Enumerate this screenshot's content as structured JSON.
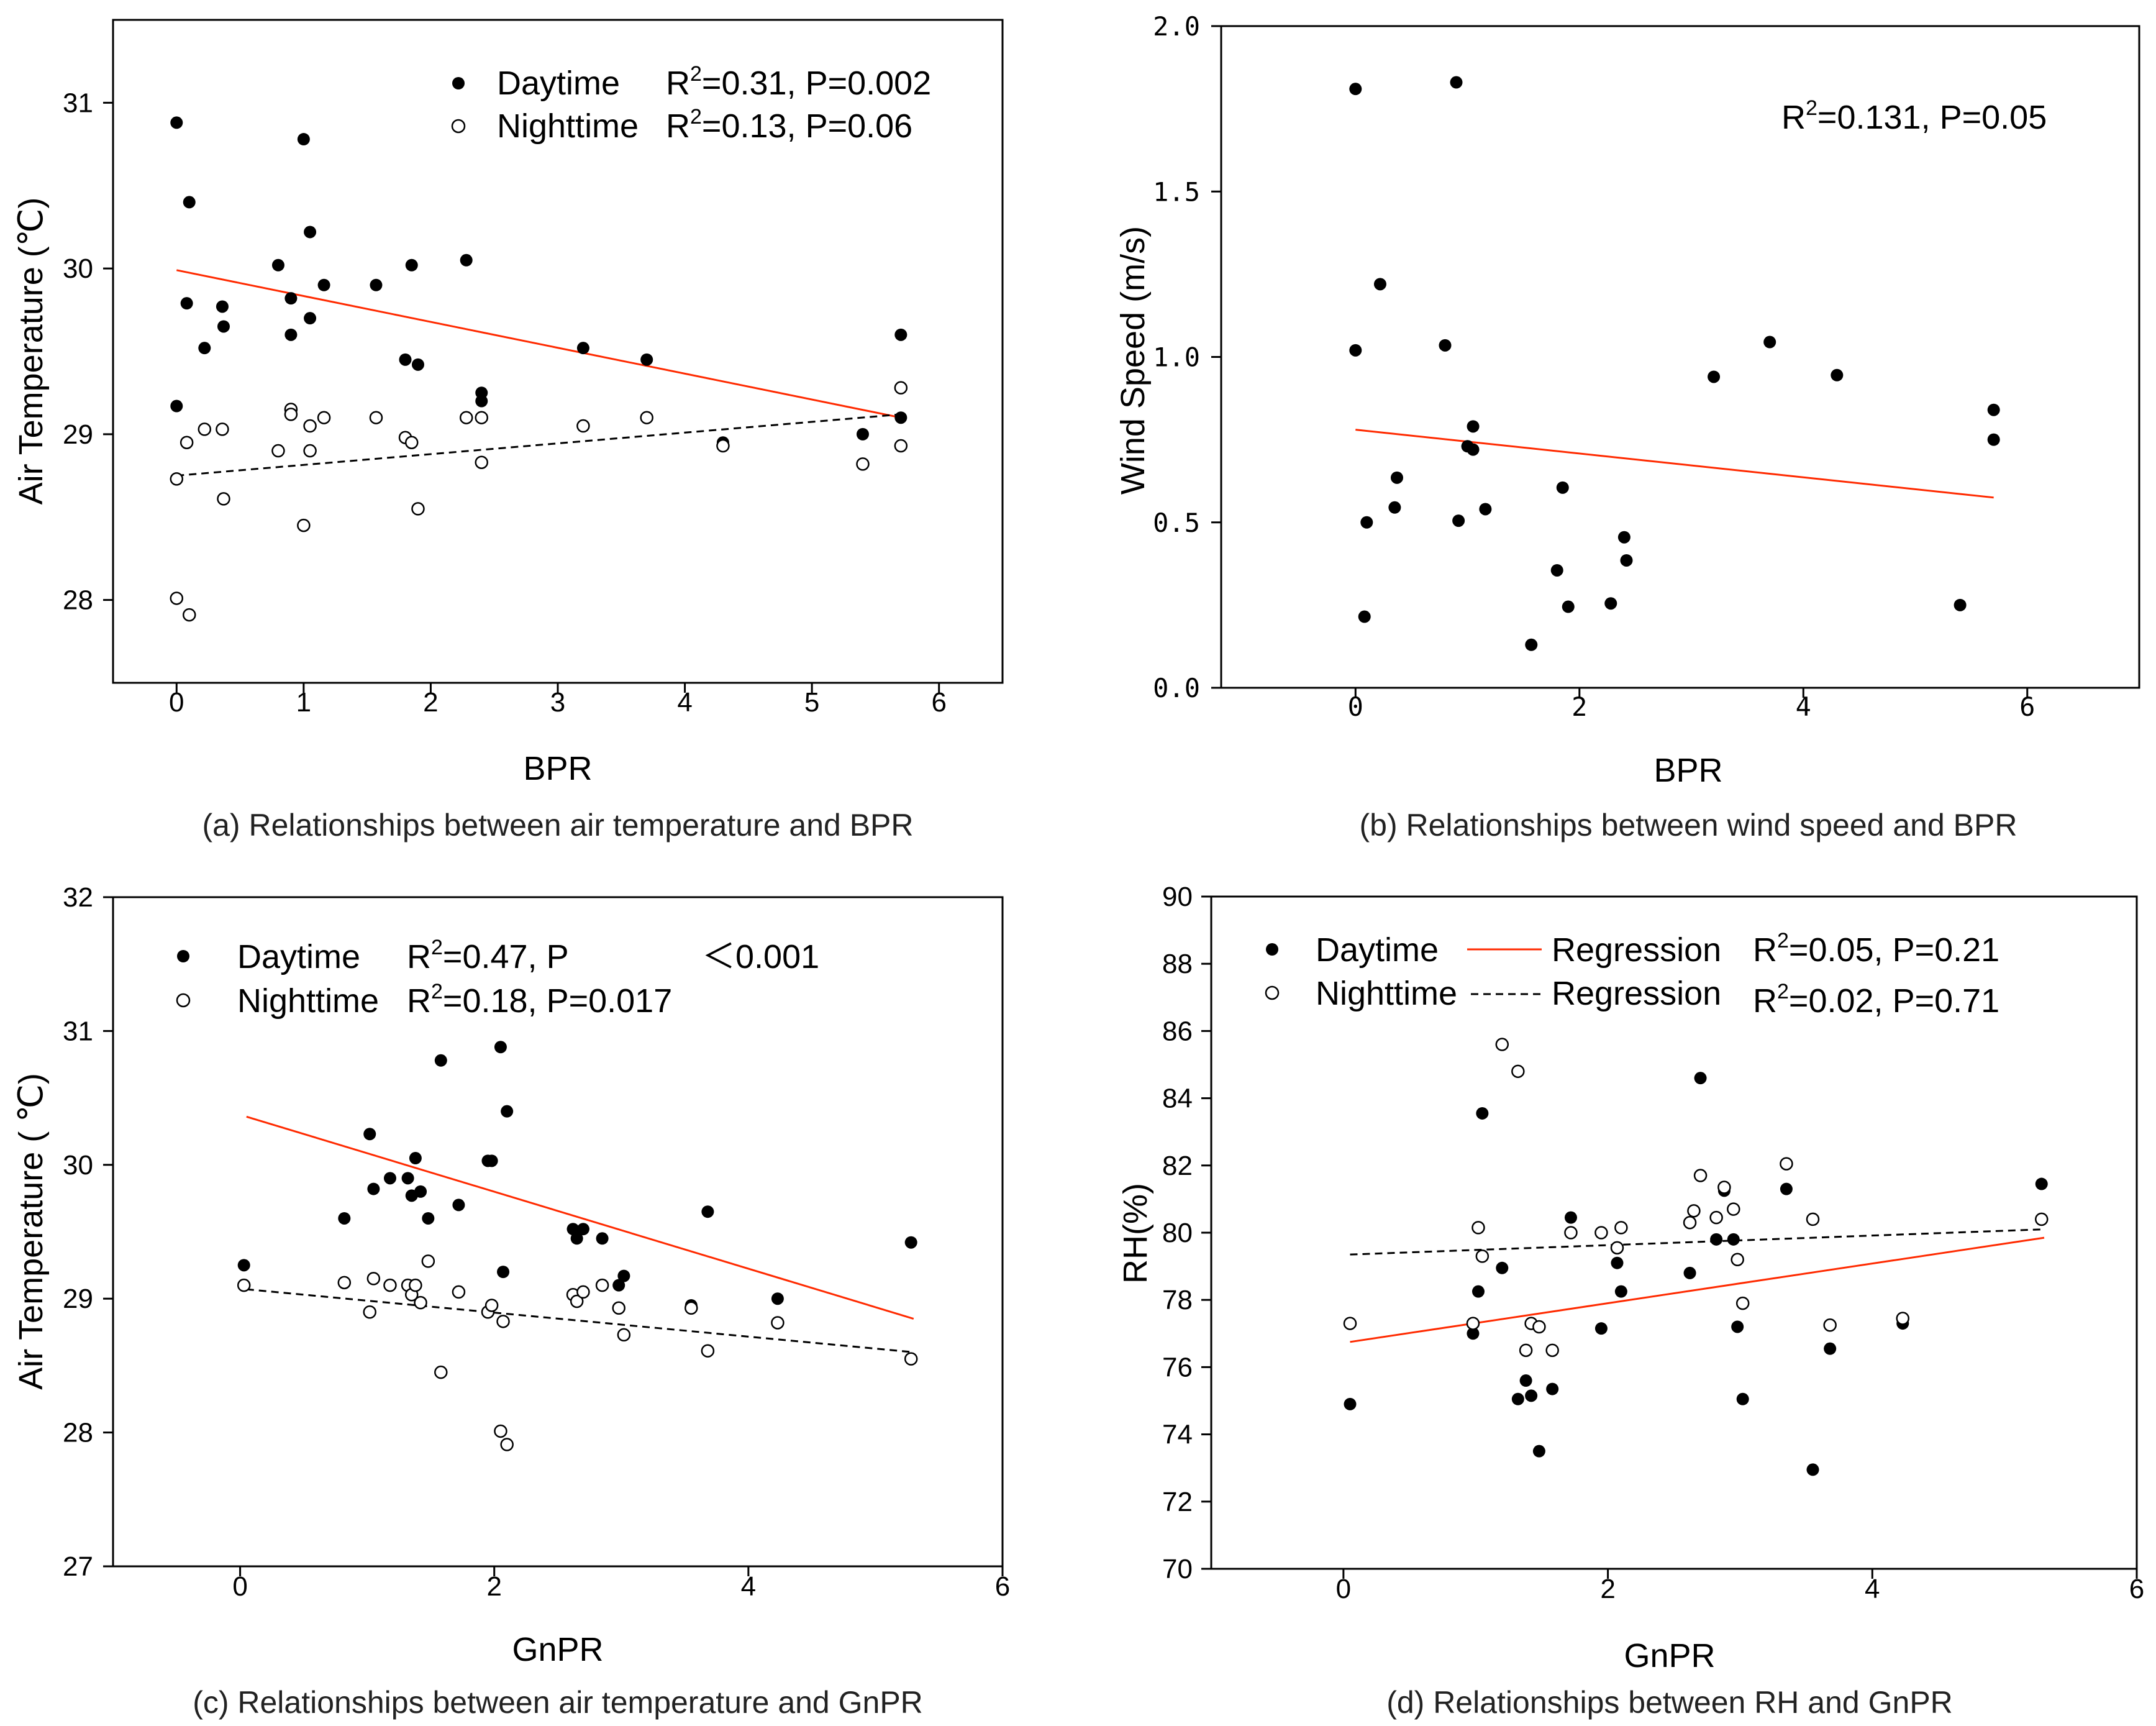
{
  "chart_data": [
    {
      "id": "a",
      "type": "scatter",
      "caption": "(a) Relationships between air temperature and BPR",
      "xlabel": "BPR",
      "ylabel": "Air Temperature (℃)",
      "xlim": [
        -0.5,
        6.5
      ],
      "ylim": [
        27.5,
        31.5
      ],
      "xticks": [
        "0",
        "1",
        "2",
        "3",
        "4",
        "5",
        "6"
      ],
      "yticks": [
        "28",
        "29",
        "30",
        "31"
      ],
      "series": [
        {
          "name": "Daytime",
          "marker": "filled",
          "stat_label": "R",
          "stat_sup": "2",
          "stat_rest": "=0.31, P=0.002",
          "fit": {
            "x": [
              0,
              5.7
            ],
            "y": [
              29.99,
              29.1
            ],
            "color": "#ff2a00",
            "dash": false
          },
          "points": [
            [
              0,
              30.88
            ],
            [
              0.1,
              30.4
            ],
            [
              0.08,
              29.79
            ],
            [
              0.22,
              29.52
            ],
            [
              0.36,
              29.77
            ],
            [
              0.37,
              29.65
            ],
            [
              0,
              29.17
            ],
            [
              0.8,
              30.02
            ],
            [
              0.9,
              29.82
            ],
            [
              0.9,
              29.6
            ],
            [
              1.0,
              30.78
            ],
            [
              1.05,
              30.22
            ],
            [
              1.05,
              29.7
            ],
            [
              1.16,
              29.9
            ],
            [
              1.57,
              29.9
            ],
            [
              1.8,
              29.45
            ],
            [
              1.85,
              30.02
            ],
            [
              1.9,
              29.42
            ],
            [
              2.28,
              30.05
            ],
            [
              2.4,
              29.25
            ],
            [
              2.4,
              29.2
            ],
            [
              3.2,
              29.52
            ],
            [
              3.7,
              29.45
            ],
            [
              4.3,
              28.95
            ],
            [
              5.4,
              29.0
            ],
            [
              5.7,
              29.6
            ],
            [
              5.7,
              29.1
            ]
          ]
        },
        {
          "name": "Nighttime",
          "marker": "open",
          "stat_label": "R",
          "stat_sup": "2",
          "stat_rest": "=0.13, P=0.06",
          "fit": {
            "x": [
              0,
              5.7
            ],
            "y": [
              28.75,
              29.12
            ],
            "color": "#000000",
            "dash": true
          },
          "points": [
            [
              0,
              28.73
            ],
            [
              0,
              28.01
            ],
            [
              0.1,
              27.91
            ],
            [
              0.08,
              28.95
            ],
            [
              0.22,
              29.03
            ],
            [
              0.36,
              29.03
            ],
            [
              0.37,
              28.61
            ],
            [
              0.8,
              28.9
            ],
            [
              0.9,
              29.15
            ],
            [
              0.9,
              29.12
            ],
            [
              1.0,
              28.45
            ],
            [
              1.05,
              28.9
            ],
            [
              1.05,
              29.05
            ],
            [
              1.16,
              29.1
            ],
            [
              1.57,
              29.1
            ],
            [
              1.8,
              28.98
            ],
            [
              1.85,
              28.95
            ],
            [
              1.9,
              28.55
            ],
            [
              2.28,
              29.1
            ],
            [
              2.4,
              29.1
            ],
            [
              2.4,
              28.83
            ],
            [
              3.2,
              29.05
            ],
            [
              3.7,
              29.1
            ],
            [
              4.3,
              28.93
            ],
            [
              5.4,
              28.82
            ],
            [
              5.7,
              28.93
            ],
            [
              5.7,
              29.28
            ]
          ]
        }
      ]
    },
    {
      "id": "b",
      "type": "scatter",
      "caption": "(b) Relationships between wind speed and BPR",
      "xlabel": "BPR",
      "ylabel": "Wind Speed (m/s)",
      "xlim": [
        -1.2,
        7.0
      ],
      "ylim": [
        0.0,
        2.0
      ],
      "xticks": [
        "0",
        "2",
        "4",
        "6"
      ],
      "yticks": [
        "0.0",
        "0.5",
        "1.0",
        "1.5",
        "2.0"
      ],
      "annotation": {
        "stat_label": "R",
        "stat_sup": "2",
        "stat_rest": "=0.131, P=0.05"
      },
      "series": [
        {
          "name": "Wind speed",
          "marker": "filled",
          "fit": {
            "x": [
              0,
              5.7
            ],
            "y": [
              0.78,
              0.575
            ],
            "color": "#ff2a00",
            "dash": false
          },
          "points": [
            [
              0,
              1.81
            ],
            [
              0,
              1.02
            ],
            [
              0.08,
              0.215
            ],
            [
              0.1,
              0.5
            ],
            [
              0.22,
              1.22
            ],
            [
              0.35,
              0.545
            ],
            [
              0.37,
              0.635
            ],
            [
              0.8,
              1.035
            ],
            [
              0.9,
              1.83
            ],
            [
              0.92,
              0.505
            ],
            [
              1.0,
              0.73
            ],
            [
              1.05,
              0.79
            ],
            [
              1.05,
              0.72
            ],
            [
              1.16,
              0.54
            ],
            [
              1.57,
              0.13
            ],
            [
              1.8,
              0.355
            ],
            [
              1.85,
              0.605
            ],
            [
              1.9,
              0.245
            ],
            [
              2.28,
              0.255
            ],
            [
              2.4,
              0.455
            ],
            [
              2.42,
              0.385
            ],
            [
              3.2,
              0.94
            ],
            [
              3.7,
              1.045
            ],
            [
              4.3,
              0.945
            ],
            [
              5.4,
              0.25
            ],
            [
              5.7,
              0.84
            ],
            [
              5.7,
              0.75
            ]
          ]
        }
      ]
    },
    {
      "id": "c",
      "type": "scatter",
      "caption": "(c) Relationships between air temperature and GnPR",
      "xlabel": "GnPR",
      "ylabel": "Air Temperature ( ℃)",
      "xlim": [
        -1.0,
        6.0
      ],
      "ylim": [
        27,
        32
      ],
      "xticks": [
        "0",
        "2",
        "4",
        "6"
      ],
      "yticks": [
        "27",
        "28",
        "29",
        "30",
        "31",
        "32"
      ],
      "series": [
        {
          "name": "Daytime",
          "marker": "filled",
          "stat_label": "R",
          "stat_sup": "2",
          "stat_rest": "=0.47, P",
          "stat_extra": "＜0.001",
          "fit": {
            "x": [
              0.05,
              5.3
            ],
            "y": [
              30.36,
              28.85
            ],
            "color": "#ff2a00",
            "dash": false
          },
          "points": [
            [
              0.03,
              29.25
            ],
            [
              0.82,
              29.6
            ],
            [
              1.02,
              30.23
            ],
            [
              1.05,
              29.82
            ],
            [
              1.18,
              29.9
            ],
            [
              1.32,
              29.9
            ],
            [
              1.35,
              29.77
            ],
            [
              1.38,
              30.05
            ],
            [
              1.42,
              29.8
            ],
            [
              1.48,
              29.6
            ],
            [
              1.58,
              30.78
            ],
            [
              1.72,
              29.7
            ],
            [
              1.95,
              30.03
            ],
            [
              1.98,
              30.03
            ],
            [
              2.05,
              30.88
            ],
            [
              2.07,
              29.2
            ],
            [
              2.1,
              30.4
            ],
            [
              2.62,
              29.52
            ],
            [
              2.65,
              29.45
            ],
            [
              2.7,
              29.52
            ],
            [
              2.85,
              29.45
            ],
            [
              2.98,
              29.1
            ],
            [
              3.02,
              29.17
            ],
            [
              3.55,
              28.95
            ],
            [
              3.68,
              29.65
            ],
            [
              4.23,
              29.0
            ],
            [
              5.28,
              29.42
            ]
          ]
        },
        {
          "name": "Nighttime",
          "marker": "open",
          "stat_label": "R",
          "stat_sup": "2",
          "stat_rest": "=0.18, P=0.017",
          "fit": {
            "x": [
              0.05,
              5.3
            ],
            "y": [
              29.07,
              28.6
            ],
            "color": "#000000",
            "dash": true
          },
          "points": [
            [
              0.03,
              29.1
            ],
            [
              0.82,
              29.12
            ],
            [
              1.02,
              28.9
            ],
            [
              1.05,
              29.15
            ],
            [
              1.18,
              29.1
            ],
            [
              1.32,
              29.1
            ],
            [
              1.35,
              29.03
            ],
            [
              1.38,
              29.1
            ],
            [
              1.42,
              28.97
            ],
            [
              1.48,
              29.28
            ],
            [
              1.58,
              28.45
            ],
            [
              1.72,
              29.05
            ],
            [
              1.95,
              28.9
            ],
            [
              1.98,
              28.95
            ],
            [
              2.05,
              28.01
            ],
            [
              2.07,
              28.83
            ],
            [
              2.1,
              27.91
            ],
            [
              2.62,
              29.03
            ],
            [
              2.65,
              28.98
            ],
            [
              2.7,
              29.05
            ],
            [
              2.85,
              29.1
            ],
            [
              2.98,
              28.93
            ],
            [
              3.02,
              28.73
            ],
            [
              3.55,
              28.93
            ],
            [
              3.68,
              28.61
            ],
            [
              4.23,
              28.82
            ],
            [
              5.28,
              28.55
            ]
          ]
        }
      ]
    },
    {
      "id": "d",
      "type": "scatter",
      "caption": "(d) Relationships between RH and GnPR",
      "xlabel": "GnPR",
      "ylabel": "RH(%)",
      "xlim": [
        -1.0,
        6.0
      ],
      "ylim": [
        70,
        90
      ],
      "xticks": [
        "0",
        "2",
        "4",
        "6"
      ],
      "yticks": [
        "70",
        "72",
        "74",
        "76",
        "78",
        "80",
        "82",
        "84",
        "86",
        "88",
        "90"
      ],
      "regression_label": "Regression",
      "series": [
        {
          "name": "Daytime",
          "marker": "filled",
          "stat_label": "R",
          "stat_sup": "2",
          "stat_rest": "=0.05, P=0.21",
          "fit": {
            "x": [
              0.05,
              5.3
            ],
            "y": [
              76.75,
              79.85
            ],
            "color": "#ff2a00",
            "dash": false
          },
          "points": [
            [
              0.05,
              74.9
            ],
            [
              0.98,
              77.0
            ],
            [
              1.02,
              78.25
            ],
            [
              1.05,
              83.55
            ],
            [
              1.2,
              78.95
            ],
            [
              1.32,
              75.05
            ],
            [
              1.38,
              75.6
            ],
            [
              1.42,
              75.15
            ],
            [
              1.48,
              73.5
            ],
            [
              1.58,
              75.35
            ],
            [
              1.72,
              80.45
            ],
            [
              1.95,
              77.15
            ],
            [
              2.07,
              79.1
            ],
            [
              2.1,
              78.25
            ],
            [
              2.62,
              78.8
            ],
            [
              2.7,
              84.6
            ],
            [
              2.82,
              79.8
            ],
            [
              2.88,
              81.25
            ],
            [
              2.95,
              79.8
            ],
            [
              2.98,
              77.2
            ],
            [
              3.02,
              75.05
            ],
            [
              3.35,
              81.3
            ],
            [
              3.55,
              72.95
            ],
            [
              3.68,
              76.55
            ],
            [
              4.23,
              77.3
            ],
            [
              5.28,
              81.45
            ]
          ]
        },
        {
          "name": "Nighttime",
          "marker": "open",
          "stat_label": "R",
          "stat_sup": "2",
          "stat_rest": "=0.02, P=0.71",
          "fit": {
            "x": [
              0.05,
              5.3
            ],
            "y": [
              79.35,
              80.1
            ],
            "color": "#000000",
            "dash": true
          },
          "points": [
            [
              0.05,
              77.3
            ],
            [
              0.98,
              77.3
            ],
            [
              1.02,
              80.15
            ],
            [
              1.05,
              79.3
            ],
            [
              1.2,
              85.6
            ],
            [
              1.32,
              84.8
            ],
            [
              1.38,
              76.5
            ],
            [
              1.42,
              77.3
            ],
            [
              1.48,
              77.2
            ],
            [
              1.58,
              76.5
            ],
            [
              1.72,
              80.0
            ],
            [
              1.95,
              80.0
            ],
            [
              2.07,
              79.55
            ],
            [
              2.1,
              80.15
            ],
            [
              2.62,
              80.3
            ],
            [
              2.65,
              80.65
            ],
            [
              2.7,
              81.7
            ],
            [
              2.82,
              80.45
            ],
            [
              2.88,
              81.35
            ],
            [
              2.95,
              80.7
            ],
            [
              2.98,
              79.2
            ],
            [
              3.02,
              77.9
            ],
            [
              3.35,
              82.05
            ],
            [
              3.55,
              80.4
            ],
            [
              3.68,
              77.25
            ],
            [
              4.23,
              77.45
            ],
            [
              5.28,
              80.4
            ]
          ]
        }
      ]
    }
  ]
}
